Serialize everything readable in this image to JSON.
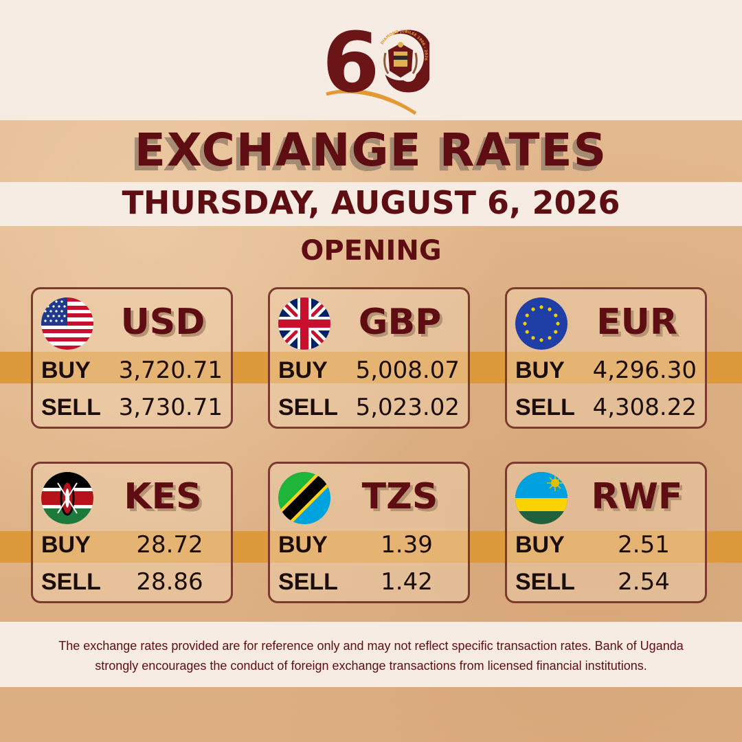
{
  "logo": {
    "number": "60",
    "ring_text": "DIAMOND JUBILEE 1966 - 2026"
  },
  "title": "EXCHANGE RATES",
  "date": "THURSDAY, AUGUST 6, 2026",
  "session": "OPENING",
  "labels": {
    "buy": "BUY",
    "sell": "SELL"
  },
  "currencies": [
    {
      "code": "USD",
      "buy": "3,720.71",
      "sell": "3,730.71",
      "flag": "usa-flag-icon"
    },
    {
      "code": "GBP",
      "buy": "5,008.07",
      "sell": "5,023.02",
      "flag": "uk-flag-icon"
    },
    {
      "code": "EUR",
      "buy": "4,296.30",
      "sell": "4,308.22",
      "flag": "eu-flag-icon"
    },
    {
      "code": "KES",
      "buy": "28.72",
      "sell": "28.86",
      "flag": "kenya-flag-icon"
    },
    {
      "code": "TZS",
      "buy": "1.39",
      "sell": "1.42",
      "flag": "tanzania-flag-icon"
    },
    {
      "code": "RWF",
      "buy": "2.51",
      "sell": "2.54",
      "flag": "rwanda-flag-icon"
    }
  ],
  "disclaimer": "The exchange rates provided are for reference only and may not reflect specific transaction rates. Bank of Uganda strongly encourages the conduct of foreign exchange transactions from licensed financial institutions.",
  "colors": {
    "maroon": "#5e0e12",
    "orange": "#dc9a3c",
    "cream": "#f6ece3"
  }
}
